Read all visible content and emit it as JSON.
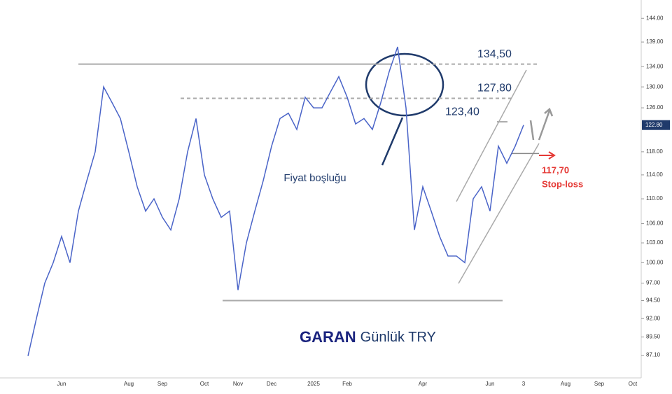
{
  "chart_data": {
    "type": "line",
    "title": "GARAN",
    "subtitle": "Günlük TRY",
    "categories": [
      null,
      null,
      null,
      null,
      "Jun",
      null,
      null,
      null,
      null,
      null,
      null,
      null,
      "Aug",
      null,
      null,
      null,
      "Sep",
      null,
      null,
      null,
      null,
      "Oct",
      null,
      null,
      null,
      "Nov",
      null,
      null,
      null,
      "Dec",
      null,
      null,
      null,
      null,
      "2025",
      null,
      null,
      null,
      "Feb",
      null,
      null,
      null,
      null,
      null,
      null,
      null,
      null,
      "Apr",
      null,
      null,
      null,
      null,
      null,
      null,
      null,
      "Jun",
      null,
      null,
      null,
      "3",
      null,
      null,
      null,
      null,
      "Aug",
      null,
      null,
      null,
      "Sep",
      null,
      null,
      null,
      "Oct"
    ],
    "series": [
      {
        "color": "#4a64c8",
        "values": [
          87,
          92,
          97,
          100,
          104,
          100,
          108,
          113,
          118,
          130,
          127,
          124,
          118,
          112,
          108,
          110,
          107,
          105,
          110,
          118,
          124,
          114,
          110,
          107,
          108,
          96,
          103,
          108,
          113,
          119,
          124,
          125,
          122,
          128,
          126,
          126,
          129,
          132,
          128,
          123,
          124,
          122,
          127,
          133,
          138,
          126,
          105,
          112,
          108,
          104,
          101,
          101,
          100,
          110,
          112,
          108,
          119,
          116,
          119,
          122.8,
          null,
          null,
          null,
          null,
          null,
          null,
          null,
          null,
          null,
          null,
          null,
          null,
          null
        ]
      }
    ],
    "ylim": [
      84.2,
      148
    ],
    "log_scale": true,
    "yticks": [
      {
        "value": 144,
        "label": "144.00"
      },
      {
        "value": 139,
        "label": "139.00"
      },
      {
        "value": 134,
        "label": "134.00"
      },
      {
        "value": 130,
        "label": "130.00"
      },
      {
        "value": 126,
        "label": "126.00"
      },
      {
        "value": 118,
        "label": "118.00"
      },
      {
        "value": 114,
        "label": "114.00"
      },
      {
        "value": 110,
        "label": "110.00"
      },
      {
        "value": 106,
        "label": "106.00"
      },
      {
        "value": 103,
        "label": "103.00"
      },
      {
        "value": 100,
        "label": "100.00"
      },
      {
        "value": 97,
        "label": "97.00"
      },
      {
        "value": 94.5,
        "label": "94.50"
      },
      {
        "value": 92,
        "label": "92.00"
      },
      {
        "value": 89.5,
        "label": "89.50"
      },
      {
        "value": 87.1,
        "label": "87.10"
      }
    ],
    "last_price": {
      "value": 122.8,
      "label": "122.80"
    },
    "levels": [
      {
        "value": 134.5,
        "label": "134,50"
      },
      {
        "value": 127.8,
        "label": "127,80"
      },
      {
        "value": 123.4,
        "label": "123,40"
      },
      {
        "value": 94.5
      }
    ],
    "stop_loss": {
      "value": 117.7,
      "label": "117,70",
      "text": "Stop-loss"
    },
    "annotation": "Fiyat boşluğu"
  }
}
